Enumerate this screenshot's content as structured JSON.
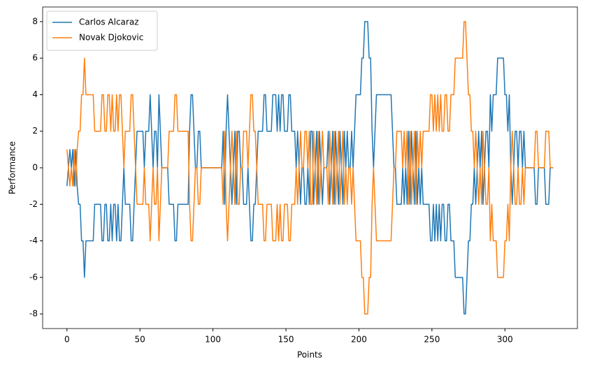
{
  "chart_data": {
    "type": "line",
    "xlabel": "Points",
    "ylabel": "Performance",
    "x": [
      0,
      1,
      2,
      3,
      4,
      5,
      6,
      7,
      8,
      9,
      10,
      11,
      12,
      13,
      14,
      15,
      16,
      17,
      18,
      19,
      20,
      21,
      22,
      23,
      24,
      25,
      26,
      27,
      28,
      29,
      30,
      31,
      32,
      33,
      34,
      35,
      36,
      37,
      38,
      39,
      40,
      41,
      42,
      43,
      44,
      45,
      46,
      47,
      48,
      49,
      50,
      51,
      52,
      53,
      54,
      55,
      56,
      57,
      58,
      59,
      60,
      61,
      62,
      63,
      64,
      65,
      66,
      67,
      68,
      69,
      70,
      71,
      72,
      73,
      74,
      75,
      76,
      77,
      78,
      79,
      80,
      81,
      82,
      83,
      84,
      85,
      86,
      87,
      88,
      89,
      90,
      91,
      92,
      93,
      94,
      95,
      96,
      97,
      98,
      99,
      100,
      101,
      102,
      103,
      104,
      105,
      106,
      107,
      108,
      109,
      110,
      111,
      112,
      113,
      114,
      115,
      116,
      117,
      118,
      119,
      120,
      121,
      122,
      123,
      124,
      125,
      126,
      127,
      128,
      129,
      130,
      131,
      132,
      133,
      134,
      135,
      136,
      137,
      138,
      139,
      140,
      141,
      142,
      143,
      144,
      145,
      146,
      147,
      148,
      149,
      150,
      151,
      152,
      153,
      154,
      155,
      156,
      157,
      158,
      159,
      160,
      161,
      162,
      163,
      164,
      165,
      166,
      167,
      168,
      169,
      170,
      171,
      172,
      173,
      174,
      175,
      176,
      177,
      178,
      179,
      180,
      181,
      182,
      183,
      184,
      185,
      186,
      187,
      188,
      189,
      190,
      191,
      192,
      193,
      194,
      195,
      196,
      197,
      198,
      199,
      200,
      201,
      202,
      203,
      204,
      205,
      206,
      207,
      208,
      209,
      210,
      211,
      212,
      213,
      214,
      215,
      216,
      217,
      218,
      219,
      220,
      221,
      222,
      223,
      224,
      225,
      226,
      227,
      228,
      229,
      230,
      231,
      232,
      233,
      234,
      235,
      236,
      237,
      238,
      239,
      240,
      241,
      242,
      243,
      244,
      245,
      246,
      247,
      248,
      249,
      250,
      251,
      252,
      253,
      254,
      255,
      256,
      257,
      258,
      259,
      260,
      261,
      262,
      263,
      264,
      265,
      266,
      267,
      268,
      269,
      270,
      271,
      272,
      273,
      274,
      275,
      276,
      277,
      278,
      279,
      280,
      281,
      282,
      283,
      284,
      285,
      286,
      287,
      288,
      289,
      290,
      291,
      292,
      293,
      294,
      295,
      296,
      297,
      298,
      299,
      300,
      301,
      302,
      303,
      304,
      305,
      306,
      307,
      308,
      309,
      310,
      311,
      312,
      313,
      314,
      315,
      316,
      317,
      318,
      319,
      320,
      321,
      322,
      323,
      324,
      325,
      326,
      327,
      328,
      329,
      330,
      331,
      332,
      333
    ],
    "series": [
      {
        "name": "Carlos Alcaraz",
        "color": "#1f77b4",
        "values": [
          -1,
          0,
          1,
          0,
          1,
          -1,
          1,
          -1,
          -2,
          -2,
          -4,
          -4,
          -6,
          -4,
          -4,
          -4,
          -4,
          -4,
          -4,
          -2,
          -2,
          -2,
          -2,
          -2,
          -4,
          -4,
          -2,
          -2,
          -4,
          -4,
          -2,
          -4,
          -2,
          -2,
          -4,
          -2,
          -4,
          -4,
          -2,
          0,
          -2,
          -2,
          -2,
          -2,
          -4,
          -4,
          -2,
          0,
          2,
          2,
          2,
          2,
          2,
          0,
          2,
          2,
          2,
          4,
          2,
          0,
          2,
          2,
          0,
          4,
          2,
          0,
          0,
          0,
          0,
          0,
          -2,
          -2,
          -2,
          -2,
          -4,
          -4,
          -2,
          -2,
          -2,
          -2,
          -2,
          -2,
          -2,
          -2,
          2,
          4,
          4,
          2,
          0,
          0,
          2,
          2,
          0,
          0,
          0,
          0,
          0,
          0,
          0,
          0,
          0,
          0,
          0,
          0,
          0,
          0,
          0,
          2,
          -2,
          2,
          4,
          2,
          0,
          -2,
          0,
          2,
          -2,
          2,
          2,
          0,
          0,
          -2,
          -2,
          -2,
          0,
          -2,
          -4,
          -4,
          -2,
          -2,
          0,
          2,
          2,
          2,
          2,
          4,
          4,
          2,
          2,
          2,
          2,
          4,
          4,
          4,
          2,
          4,
          2,
          4,
          4,
          2,
          2,
          2,
          4,
          4,
          2,
          2,
          2,
          0,
          2,
          0,
          -2,
          0,
          0,
          -2,
          -2,
          0,
          -2,
          2,
          2,
          -2,
          0,
          2,
          -2,
          2,
          0,
          -2,
          0,
          0,
          0,
          2,
          -2,
          0,
          2,
          -2,
          2,
          0,
          -2,
          2,
          0,
          -2,
          2,
          0,
          2,
          0,
          0,
          2,
          0,
          2,
          4,
          4,
          4,
          4,
          6,
          6,
          8,
          8,
          8,
          6,
          6,
          2,
          0,
          2,
          4,
          4,
          4,
          4,
          4,
          4,
          4,
          4,
          4,
          4,
          4,
          2,
          0,
          0,
          -2,
          -2,
          -2,
          -2,
          0,
          -2,
          0,
          -2,
          2,
          -2,
          2,
          0,
          -2,
          2,
          -2,
          0,
          -2,
          0,
          -2,
          -2,
          -2,
          -2,
          -2,
          -4,
          -4,
          -2,
          -4,
          -2,
          -4,
          -2,
          -4,
          -2,
          -2,
          -4,
          -4,
          -2,
          -2,
          -4,
          -4,
          -4,
          -6,
          -6,
          -6,
          -6,
          -6,
          -6,
          -8,
          -8,
          -6,
          -4,
          -4,
          -2,
          -2,
          0,
          -2,
          0,
          2,
          0,
          2,
          -2,
          0,
          2,
          2,
          0,
          4,
          2,
          4,
          4,
          4,
          6,
          6,
          6,
          6,
          6,
          4,
          4,
          2,
          4,
          0,
          -2,
          0,
          2,
          2,
          0,
          2,
          2,
          0,
          2,
          0,
          0,
          0,
          0,
          0,
          0,
          0,
          -2,
          -2,
          0,
          0,
          0,
          0,
          0,
          -2,
          -2,
          -2,
          0,
          0,
          0
        ]
      },
      {
        "name": "Novak Djokovic",
        "color": "#ff7f0e",
        "values": [
          1,
          0,
          -1,
          0,
          -1,
          1,
          -1,
          1,
          2,
          2,
          4,
          4,
          6,
          4,
          4,
          4,
          4,
          4,
          4,
          2,
          2,
          2,
          2,
          2,
          4,
          4,
          2,
          2,
          4,
          4,
          2,
          4,
          2,
          2,
          4,
          2,
          4,
          4,
          2,
          0,
          2,
          2,
          2,
          2,
          4,
          4,
          2,
          0,
          -2,
          -2,
          -2,
          -2,
          -2,
          0,
          -2,
          -2,
          -2,
          -4,
          -2,
          0,
          -2,
          -2,
          0,
          -4,
          -2,
          0,
          0,
          0,
          0,
          0,
          2,
          2,
          2,
          2,
          4,
          4,
          2,
          2,
          2,
          2,
          2,
          2,
          2,
          2,
          -2,
          -4,
          -4,
          -2,
          0,
          0,
          -2,
          -2,
          0,
          0,
          0,
          0,
          0,
          0,
          0,
          0,
          0,
          0,
          0,
          0,
          0,
          0,
          0,
          -2,
          2,
          -2,
          -4,
          -2,
          0,
          2,
          0,
          -2,
          2,
          -2,
          -2,
          0,
          0,
          2,
          2,
          2,
          0,
          2,
          4,
          4,
          2,
          2,
          0,
          -2,
          -2,
          -2,
          -2,
          -4,
          -4,
          -2,
          -2,
          -2,
          -2,
          -4,
          -4,
          -4,
          -2,
          -4,
          -2,
          -4,
          -4,
          -2,
          -2,
          -2,
          -4,
          -4,
          -2,
          -2,
          -2,
          0,
          -2,
          0,
          2,
          0,
          0,
          2,
          2,
          0,
          2,
          -2,
          -2,
          2,
          0,
          -2,
          2,
          -2,
          0,
          2,
          0,
          0,
          0,
          -2,
          2,
          0,
          -2,
          2,
          -2,
          0,
          2,
          -2,
          0,
          2,
          -2,
          0,
          -2,
          0,
          0,
          -2,
          0,
          -2,
          -4,
          -4,
          -4,
          -4,
          -6,
          -6,
          -8,
          -8,
          -8,
          -6,
          -6,
          -2,
          0,
          -2,
          -4,
          -4,
          -4,
          -4,
          -4,
          -4,
          -4,
          -4,
          -4,
          -4,
          -4,
          -2,
          0,
          0,
          2,
          2,
          2,
          2,
          0,
          2,
          0,
          2,
          -2,
          2,
          -2,
          0,
          2,
          -2,
          2,
          0,
          2,
          0,
          2,
          2,
          2,
          2,
          2,
          4,
          4,
          2,
          4,
          2,
          4,
          2,
          4,
          2,
          2,
          4,
          4,
          2,
          2,
          4,
          4,
          4,
          6,
          6,
          6,
          6,
          6,
          6,
          8,
          8,
          6,
          4,
          4,
          2,
          2,
          0,
          2,
          0,
          -2,
          0,
          -2,
          2,
          0,
          -2,
          -2,
          0,
          -4,
          -2,
          -4,
          -4,
          -4,
          -6,
          -6,
          -6,
          -6,
          -6,
          -4,
          -4,
          -2,
          -4,
          0,
          2,
          0,
          -2,
          -2,
          0,
          -2,
          -2,
          0,
          -2,
          0,
          0,
          0,
          0,
          0,
          0,
          0,
          2,
          2,
          0,
          0,
          0,
          0,
          0,
          2,
          2,
          2,
          0,
          0,
          0
        ]
      }
    ],
    "xlim": [
      -16.65,
      349.65
    ],
    "xticks": [
      0,
      50,
      100,
      150,
      200,
      250,
      300
    ],
    "ylim": [
      -8.8,
      8.8
    ],
    "yticks": [
      -8,
      -6,
      -4,
      -2,
      0,
      2,
      4,
      6,
      8
    ],
    "grid": false,
    "legend": "upper left"
  }
}
